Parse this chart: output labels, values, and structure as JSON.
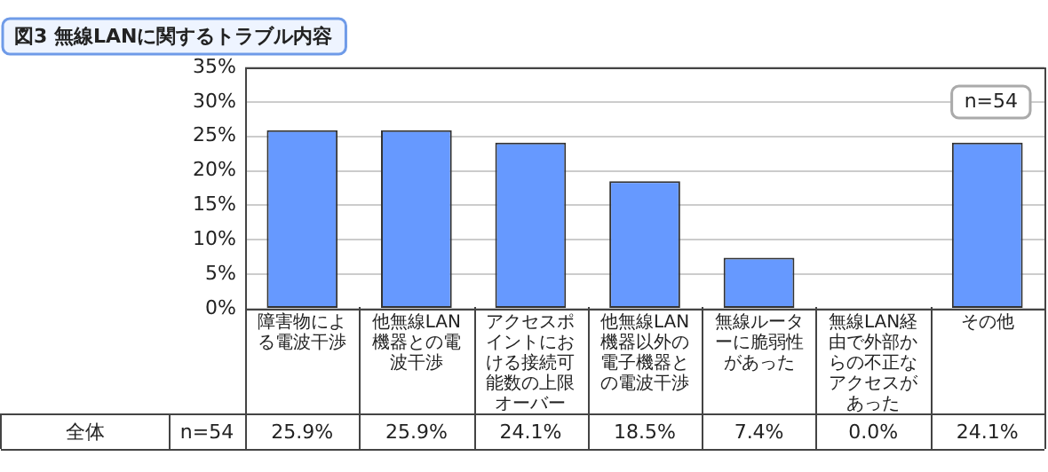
{
  "chart_data": {
    "type": "bar",
    "title": "図3 無線LANに関するトラブル内容",
    "categories": [
      "障害物による電波干渉",
      "他無線LAN機器との電波干渉",
      "アクセスポイントにおける接続可能数の上限オーバー",
      "他無線LAN機器以外の電子機器との電波干渉",
      "無線ルーターに脆弱性があった",
      "無線LAN経由で外部からの不正なアクセスがあった",
      "その他"
    ],
    "series": [
      {
        "color": "#6699ff",
        "values": [
          25.9,
          25.9,
          24.1,
          18.5,
          7.4,
          0.0,
          24.1
        ],
        "value_labels": [
          "25.9%",
          "25.9%",
          "24.1%",
          "18.5%",
          "7.4%",
          "0.0%",
          "24.1%"
        ]
      }
    ],
    "ylim": [
      0,
      35
    ],
    "yticks": [
      {
        "value": 0,
        "label": "0%"
      },
      {
        "value": 5,
        "label": "5%"
      },
      {
        "value": 10,
        "label": "10%"
      },
      {
        "value": 15,
        "label": "15%"
      },
      {
        "value": 20,
        "label": "20%"
      },
      {
        "value": 25,
        "label": "25%"
      },
      {
        "value": 30,
        "label": "30%"
      },
      {
        "value": 35,
        "label": "35%"
      }
    ],
    "grid": "y",
    "legend": false,
    "annotations": [
      "n=54",
      "全体",
      "n=54"
    ]
  }
}
